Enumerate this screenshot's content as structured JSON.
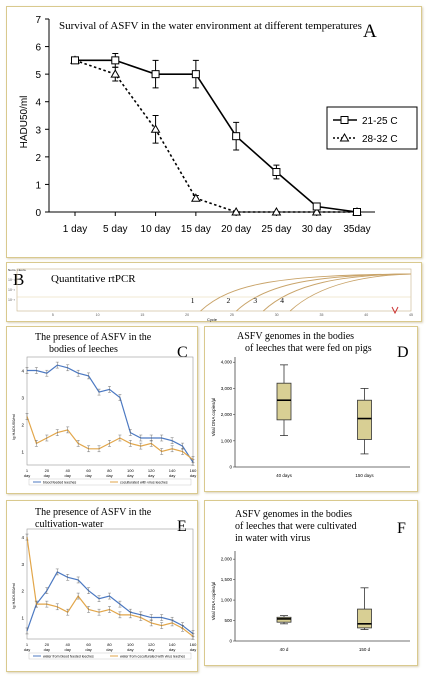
{
  "chart_data": [
    {
      "panel": "A",
      "type": "line",
      "title": "Survival of ASFV in the water environment at different temperatures",
      "ylabel": "HADU50/ml",
      "xlabel": "",
      "categories": [
        "1 day",
        "5 day",
        "10 day",
        "15 day",
        "20 day",
        "25 day",
        "30 day",
        "35day"
      ],
      "ylim": [
        0,
        7
      ],
      "yticks": [
        "0",
        "1",
        "2",
        "3",
        "4",
        "5",
        "6",
        "7"
      ],
      "legend_position": "right",
      "series": [
        {
          "name": "21-25 C",
          "values": [
            5.5,
            5.5,
            5.0,
            5.0,
            2.75,
            1.45,
            0.2,
            0.0
          ],
          "errors": [
            0,
            0.25,
            0.5,
            0.5,
            0.5,
            0.25,
            0.1,
            0
          ]
        },
        {
          "name": "28-32 C",
          "values": [
            5.5,
            5.0,
            3.0,
            0.5,
            0.0,
            0.0,
            0.0,
            0.0
          ],
          "errors": [
            0,
            0.25,
            0.5,
            0.1,
            0,
            0,
            0,
            0
          ]
        }
      ],
      "colors": {
        "series1": "#1a1a1a",
        "series2": "#1a1a1a"
      }
    },
    {
      "panel": "B",
      "type": "line",
      "title": "Quantitative rtPCR",
      "ylabel": "Norm. Fluoro.",
      "xlabel": "Cycle",
      "xticks": [
        "5",
        "10",
        "15",
        "20",
        "25",
        "30",
        "35",
        "40",
        "45"
      ],
      "yticks": [
        "10⁻¹",
        "10⁻²",
        "10⁻³"
      ],
      "curve_labels": [
        "1",
        "2",
        "3",
        "4"
      ],
      "curve_starts": [
        21.5,
        25.5,
        28.5,
        31.5
      ],
      "colors": {
        "curve": "#c9a46a"
      }
    },
    {
      "panel": "C",
      "type": "line",
      "title": "The presence of ASFV in the bodies of leeches",
      "ylabel": "lg HADU50/ml",
      "categories": [
        "1\nday",
        "20\nday",
        "40\nday",
        "60\nday",
        "80\nday",
        "100\nday",
        "120\nday",
        "140\nday",
        "160\nday"
      ],
      "yticks": [
        "1",
        "2",
        "3",
        "4"
      ],
      "ylim": [
        0.5,
        4.5
      ],
      "series": [
        {
          "name": "blood feeded leeches",
          "x": [
            1,
            10,
            20,
            30,
            40,
            50,
            60,
            70,
            80,
            90,
            100,
            110,
            120,
            130,
            140,
            150,
            160
          ],
          "values": [
            4.0,
            4.0,
            3.9,
            4.2,
            4.1,
            3.9,
            3.8,
            3.2,
            3.3,
            3.0,
            1.7,
            1.5,
            1.5,
            1.5,
            1.4,
            1.2,
            0.6
          ]
        },
        {
          "name": "coculturated with virus leeches",
          "x": [
            1,
            10,
            20,
            30,
            40,
            50,
            60,
            70,
            80,
            90,
            100,
            110,
            120,
            130,
            140,
            150,
            160
          ],
          "values": [
            2.3,
            1.3,
            1.5,
            1.7,
            1.8,
            1.3,
            1.1,
            1.1,
            1.3,
            1.5,
            1.3,
            1.2,
            1.3,
            1.0,
            1.1,
            1.0,
            0.7
          ]
        }
      ],
      "colors": {
        "series1": "#4c79c2",
        "series2": "#e2a64a"
      }
    },
    {
      "panel": "D",
      "type": "box",
      "title": "ASFV genomes in the bodies of leeches that were fed on pigs",
      "ylabel": "Viral DNA copies/µl",
      "categories": [
        "40 days",
        "150 days"
      ],
      "yticks": [
        "0",
        "1,000",
        "2,000",
        "3,000",
        "4,000"
      ],
      "ylim": [
        0,
        4200
      ],
      "boxes": [
        {
          "min": 1200,
          "q1": 1800,
          "median": 2550,
          "q3": 3200,
          "max": 3900
        },
        {
          "min": 500,
          "q1": 1050,
          "median": 1850,
          "q3": 2550,
          "max": 3000
        }
      ],
      "colors": {
        "box": "#d8cf94"
      }
    },
    {
      "panel": "E",
      "type": "line",
      "title": "The presence of ASFV in the cultivation-water",
      "ylabel": "lg HADU50/ml",
      "categories": [
        "1\nday",
        "20\nday",
        "40\nday",
        "60\nday",
        "80\nday",
        "100\nday",
        "120\nday",
        "140\nday",
        "160\nday"
      ],
      "yticks": [
        "1",
        "2",
        "3",
        "4"
      ],
      "ylim": [
        0.2,
        4.3
      ],
      "series": [
        {
          "name": "water from blood feeded leeches",
          "x": [
            1,
            10,
            20,
            30,
            40,
            50,
            60,
            70,
            80,
            90,
            100,
            110,
            120,
            130,
            140,
            150,
            160
          ],
          "values": [
            0.5,
            1.5,
            2.0,
            2.7,
            2.5,
            2.4,
            2.0,
            1.7,
            1.8,
            1.5,
            1.2,
            1.1,
            1.0,
            1.0,
            0.9,
            0.7,
            0.4
          ]
        },
        {
          "name": "water from coculturated with virus leeches",
          "x": [
            1,
            10,
            20,
            30,
            40,
            50,
            60,
            70,
            80,
            90,
            100,
            110,
            120,
            130,
            140,
            150,
            160
          ],
          "values": [
            4.0,
            1.5,
            1.5,
            1.4,
            1.2,
            1.8,
            1.3,
            1.2,
            1.3,
            1.1,
            1.1,
            1.0,
            0.8,
            0.7,
            0.8,
            0.6,
            0.3
          ]
        }
      ],
      "colors": {
        "series1": "#4c79c2",
        "series2": "#e2a64a"
      }
    },
    {
      "panel": "F",
      "type": "box",
      "title": "ASFV genomes in the bodies of leeches that were cultivated in water with virus",
      "ylabel": "Viral DNA copies/µl",
      "categories": [
        "40 d",
        "150 d"
      ],
      "yticks": [
        "0",
        "500",
        "1,000",
        "1,500",
        "2,000"
      ],
      "ylim": [
        0,
        2200
      ],
      "boxes": [
        {
          "min": 420,
          "q1": 460,
          "median": 540,
          "q3": 580,
          "max": 620
        },
        {
          "min": 280,
          "q1": 320,
          "median": 420,
          "q3": 780,
          "max": 1300
        }
      ],
      "colors": {
        "box": "#d8cf94"
      }
    }
  ]
}
